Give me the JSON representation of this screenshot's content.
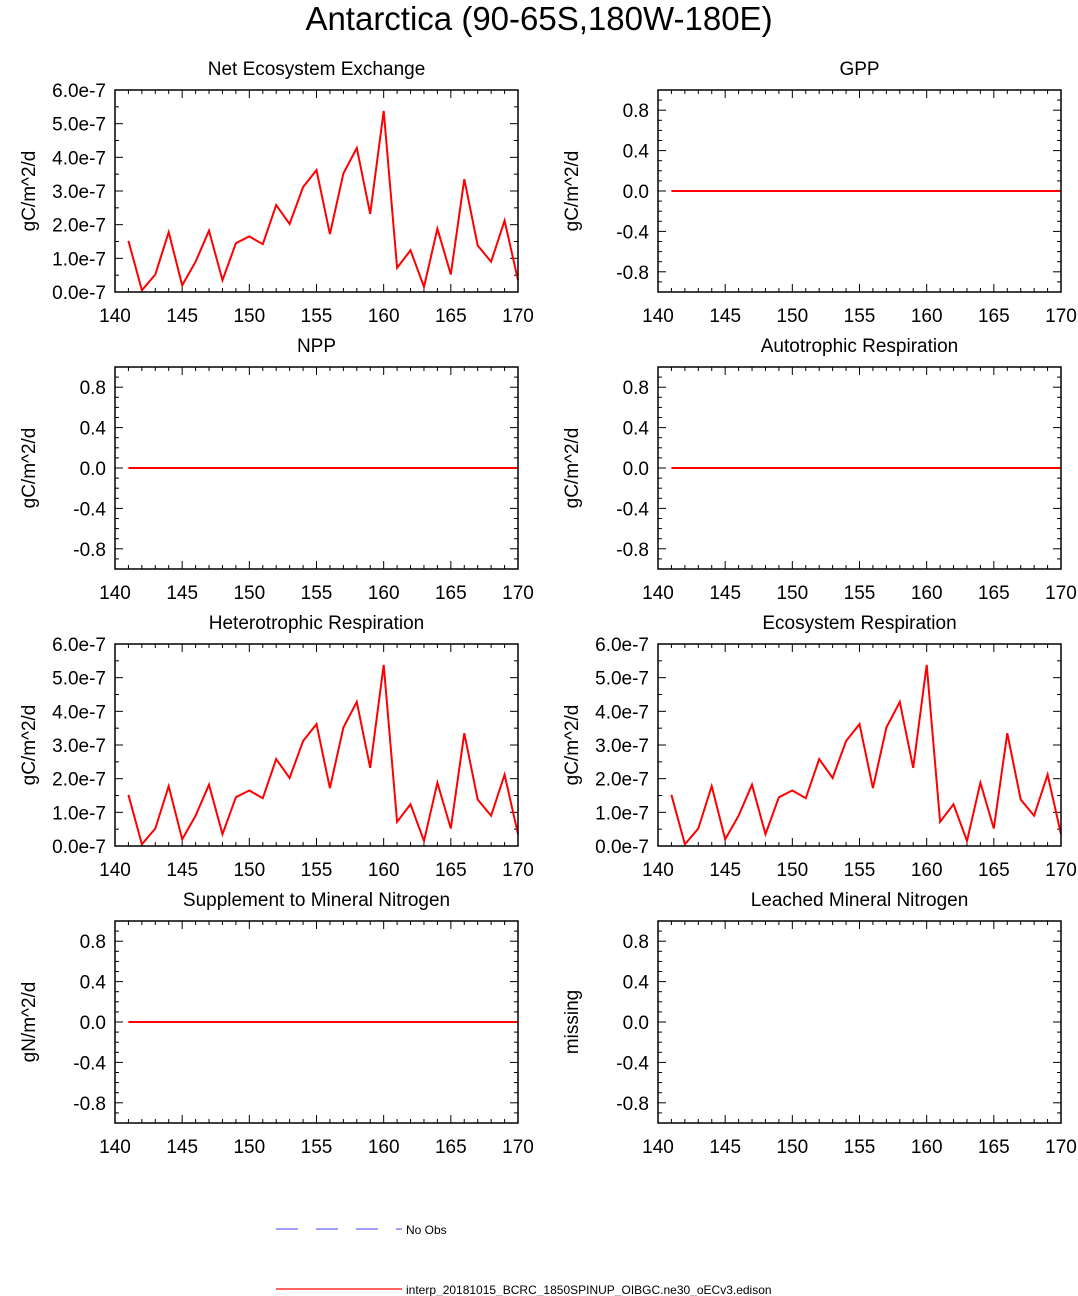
{
  "title": "Antarctica (90-65S,180W-180E)",
  "colors": {
    "model_line": "#ff0000",
    "obs_line": "#6666ff",
    "axis": "#000000"
  },
  "chart_data": [
    {
      "type": "line",
      "title": "Net Ecosystem Exchange",
      "ylabel": "gC/m^2/d",
      "xlabel": "",
      "xlim": [
        140,
        170
      ],
      "xticks": [
        "140",
        "145",
        "150",
        "155",
        "160",
        "165",
        "170"
      ],
      "ylim": [
        0,
        6e-07
      ],
      "yticks": [
        "0.0e-7",
        "1.0e-7",
        "2.0e-7",
        "3.0e-7",
        "4.0e-7",
        "5.0e-7",
        "6.0e-7"
      ],
      "series": [
        {
          "name": "interp_20181015_BCRC_1850SPINUP_OIBGC.ne30_oECv3.edison",
          "x": [
            141,
            142,
            143,
            144,
            145,
            146,
            147,
            148,
            149,
            150,
            151,
            152,
            153,
            154,
            155,
            156,
            157,
            158,
            159,
            160,
            161,
            162,
            163,
            164,
            165,
            166,
            167,
            168,
            169,
            170
          ],
          "values": [
            1.52e-07,
            5e-09,
            5.2e-08,
            1.78e-07,
            2e-08,
            9e-08,
            1.82e-07,
            3.5e-08,
            1.45e-07,
            1.65e-07,
            1.42e-07,
            2.58e-07,
            2.02e-07,
            3.12e-07,
            3.62e-07,
            1.72e-07,
            3.52e-07,
            4.28e-07,
            2.32e-07,
            5.38e-07,
            7.2e-08,
            1.24e-07,
            1.5e-08,
            1.88e-07,
            5.2e-08,
            3.35e-07,
            1.38e-07,
            9e-08,
            2.12e-07,
            3.5e-08
          ]
        }
      ]
    },
    {
      "type": "line",
      "title": "GPP",
      "ylabel": "gC/m^2/d",
      "xlabel": "",
      "xlim": [
        140,
        170
      ],
      "xticks": [
        "140",
        "145",
        "150",
        "155",
        "160",
        "165",
        "170"
      ],
      "ylim": [
        -1,
        1
      ],
      "yticks": [
        "-0.8",
        "-0.4",
        "0.0",
        "0.4",
        "0.8"
      ],
      "series": [
        {
          "name": "interp_20181015_BCRC_1850SPINUP_OIBGC.ne30_oECv3.edison",
          "x": [
            141,
            170
          ],
          "values": [
            0,
            0
          ]
        }
      ]
    },
    {
      "type": "line",
      "title": "NPP",
      "ylabel": "gC/m^2/d",
      "xlabel": "",
      "xlim": [
        140,
        170
      ],
      "xticks": [
        "140",
        "145",
        "150",
        "155",
        "160",
        "165",
        "170"
      ],
      "ylim": [
        -1,
        1
      ],
      "yticks": [
        "-0.8",
        "-0.4",
        "0.0",
        "0.4",
        "0.8"
      ],
      "series": [
        {
          "name": "interp_20181015_BCRC_1850SPINUP_OIBGC.ne30_oECv3.edison",
          "x": [
            141,
            170
          ],
          "values": [
            0,
            0
          ]
        }
      ]
    },
    {
      "type": "line",
      "title": "Autotrophic Respiration",
      "ylabel": "gC/m^2/d",
      "xlabel": "",
      "xlim": [
        140,
        170
      ],
      "xticks": [
        "140",
        "145",
        "150",
        "155",
        "160",
        "165",
        "170"
      ],
      "ylim": [
        -1,
        1
      ],
      "yticks": [
        "-0.8",
        "-0.4",
        "0.0",
        "0.4",
        "0.8"
      ],
      "series": [
        {
          "name": "interp_20181015_BCRC_1850SPINUP_OIBGC.ne30_oECv3.edison",
          "x": [
            141,
            170
          ],
          "values": [
            0,
            0
          ]
        }
      ]
    },
    {
      "type": "line",
      "title": "Heterotrophic Respiration",
      "ylabel": "gC/m^2/d",
      "xlabel": "",
      "xlim": [
        140,
        170
      ],
      "xticks": [
        "140",
        "145",
        "150",
        "155",
        "160",
        "165",
        "170"
      ],
      "ylim": [
        0,
        6e-07
      ],
      "yticks": [
        "0.0e-7",
        "1.0e-7",
        "2.0e-7",
        "3.0e-7",
        "4.0e-7",
        "5.0e-7",
        "6.0e-7"
      ],
      "series": [
        {
          "name": "interp_20181015_BCRC_1850SPINUP_OIBGC.ne30_oECv3.edison",
          "x": [
            141,
            142,
            143,
            144,
            145,
            146,
            147,
            148,
            149,
            150,
            151,
            152,
            153,
            154,
            155,
            156,
            157,
            158,
            159,
            160,
            161,
            162,
            163,
            164,
            165,
            166,
            167,
            168,
            169,
            170
          ],
          "values": [
            1.52e-07,
            5e-09,
            5.2e-08,
            1.78e-07,
            2e-08,
            9e-08,
            1.82e-07,
            3.5e-08,
            1.45e-07,
            1.65e-07,
            1.42e-07,
            2.58e-07,
            2.02e-07,
            3.12e-07,
            3.62e-07,
            1.72e-07,
            3.52e-07,
            4.28e-07,
            2.32e-07,
            5.38e-07,
            7.2e-08,
            1.24e-07,
            1.5e-08,
            1.88e-07,
            5.2e-08,
            3.35e-07,
            1.38e-07,
            9e-08,
            2.12e-07,
            3.5e-08
          ]
        }
      ]
    },
    {
      "type": "line",
      "title": "Ecosystem Respiration",
      "ylabel": "gC/m^2/d",
      "xlabel": "",
      "xlim": [
        140,
        170
      ],
      "xticks": [
        "140",
        "145",
        "150",
        "155",
        "160",
        "165",
        "170"
      ],
      "ylim": [
        0,
        6e-07
      ],
      "yticks": [
        "0.0e-7",
        "1.0e-7",
        "2.0e-7",
        "3.0e-7",
        "4.0e-7",
        "5.0e-7",
        "6.0e-7"
      ],
      "series": [
        {
          "name": "interp_20181015_BCRC_1850SPINUP_OIBGC.ne30_oECv3.edison",
          "x": [
            141,
            142,
            143,
            144,
            145,
            146,
            147,
            148,
            149,
            150,
            151,
            152,
            153,
            154,
            155,
            156,
            157,
            158,
            159,
            160,
            161,
            162,
            163,
            164,
            165,
            166,
            167,
            168,
            169,
            170
          ],
          "values": [
            1.52e-07,
            5e-09,
            5.2e-08,
            1.78e-07,
            2e-08,
            9e-08,
            1.82e-07,
            3.5e-08,
            1.45e-07,
            1.65e-07,
            1.42e-07,
            2.58e-07,
            2.02e-07,
            3.12e-07,
            3.62e-07,
            1.72e-07,
            3.52e-07,
            4.28e-07,
            2.32e-07,
            5.38e-07,
            7.2e-08,
            1.24e-07,
            1.5e-08,
            1.88e-07,
            5.2e-08,
            3.35e-07,
            1.38e-07,
            9e-08,
            2.12e-07,
            3.5e-08
          ]
        }
      ]
    },
    {
      "type": "line",
      "title": "Supplement to Mineral Nitrogen",
      "ylabel": "gN/m^2/d",
      "xlabel": "",
      "xlim": [
        140,
        170
      ],
      "xticks": [
        "140",
        "145",
        "150",
        "155",
        "160",
        "165",
        "170"
      ],
      "ylim": [
        -1,
        1
      ],
      "yticks": [
        "-0.8",
        "-0.4",
        "0.0",
        "0.4",
        "0.8"
      ],
      "series": [
        {
          "name": "interp_20181015_BCRC_1850SPINUP_OIBGC.ne30_oECv3.edison",
          "x": [
            141,
            170
          ],
          "values": [
            0,
            0
          ]
        }
      ]
    },
    {
      "type": "line",
      "title": "Leached Mineral Nitrogen",
      "ylabel": "missing",
      "xlabel": "",
      "xlim": [
        140,
        170
      ],
      "xticks": [
        "140",
        "145",
        "150",
        "155",
        "160",
        "165",
        "170"
      ],
      "ylim": [
        -1,
        1
      ],
      "yticks": [
        "-0.8",
        "-0.4",
        "0.0",
        "0.4",
        "0.8"
      ],
      "series": []
    }
  ],
  "legend": {
    "entries": [
      {
        "label": "No Obs",
        "style": "dashed",
        "color": "#6666ff"
      },
      {
        "label": "interp_20181015_BCRC_1850SPINUP_OIBGC.ne30_oECv3.edison",
        "style": "solid",
        "color": "#ff0000"
      }
    ]
  }
}
